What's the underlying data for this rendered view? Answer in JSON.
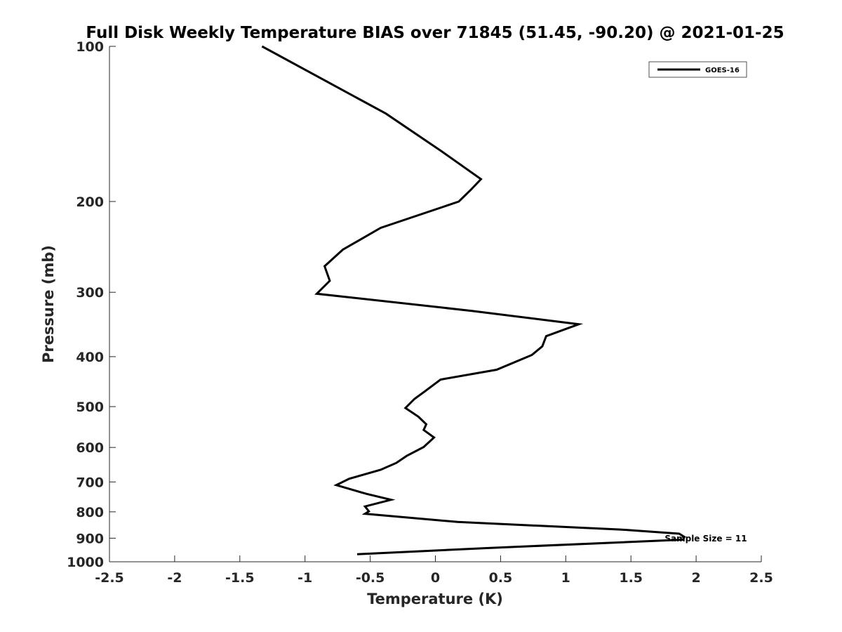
{
  "chart_data": {
    "type": "line",
    "title": "Full Disk Weekly Temperature BIAS over 71845 (51.45, -90.20) @ 2021-01-25",
    "xlabel": "Temperature (K)",
    "ylabel": "Pressure (mb)",
    "xlim": [
      -2.5,
      2.5
    ],
    "ylim": [
      100,
      1000
    ],
    "y_scale": "log",
    "y_reversed": true,
    "grid": false,
    "x_ticks": [
      -2.5,
      -2,
      -1.5,
      -1,
      -0.5,
      0,
      0.5,
      1,
      1.5,
      2,
      2.5
    ],
    "x_tick_labels": [
      "-2.5",
      "-2",
      "-1.5",
      "-1",
      "-0.5",
      "0",
      "0.5",
      "1",
      "1.5",
      "2",
      "2.5"
    ],
    "y_ticks": [
      100,
      200,
      300,
      400,
      500,
      600,
      700,
      800,
      900,
      1000
    ],
    "y_tick_labels": [
      "100",
      "200",
      "300",
      "400",
      "500",
      "600",
      "700",
      "800",
      "900",
      "1000"
    ],
    "legend_position": "top-right",
    "series": [
      {
        "name": "GOES-16",
        "color": "#000000",
        "points": [
          [
            -1.33,
            100
          ],
          [
            -0.38,
            135
          ],
          [
            0.05,
            160
          ],
          [
            0.35,
            181
          ],
          [
            0.27,
            190
          ],
          [
            0.18,
            200
          ],
          [
            -0.42,
            225
          ],
          [
            -0.71,
            248
          ],
          [
            -0.85,
            267
          ],
          [
            -0.81,
            285
          ],
          [
            -0.91,
            302
          ],
          [
            0.28,
            326
          ],
          [
            1.1,
            346
          ],
          [
            0.85,
            365
          ],
          [
            0.82,
            382
          ],
          [
            0.74,
            397
          ],
          [
            0.47,
            424
          ],
          [
            0.04,
            443
          ],
          [
            -0.09,
            469
          ],
          [
            -0.16,
            483
          ],
          [
            -0.23,
            503
          ],
          [
            -0.13,
            523
          ],
          [
            -0.07,
            541
          ],
          [
            -0.09,
            555
          ],
          [
            -0.01,
            574
          ],
          [
            -0.09,
            599
          ],
          [
            -0.22,
            623
          ],
          [
            -0.3,
            643
          ],
          [
            -0.42,
            663
          ],
          [
            -0.66,
            690
          ],
          [
            -0.76,
            710
          ],
          [
            -0.53,
            738
          ],
          [
            -0.34,
            758
          ],
          [
            -0.54,
            781
          ],
          [
            -0.51,
            798
          ],
          [
            -0.54,
            807
          ],
          [
            0.17,
            837
          ],
          [
            1.42,
            866
          ],
          [
            1.87,
            882
          ],
          [
            1.91,
            895
          ],
          [
            1.9,
            906
          ],
          [
            0.38,
            941
          ],
          [
            -0.6,
            967
          ]
        ]
      }
    ],
    "annotations": [
      {
        "text": "Sample Size = 11"
      }
    ]
  }
}
